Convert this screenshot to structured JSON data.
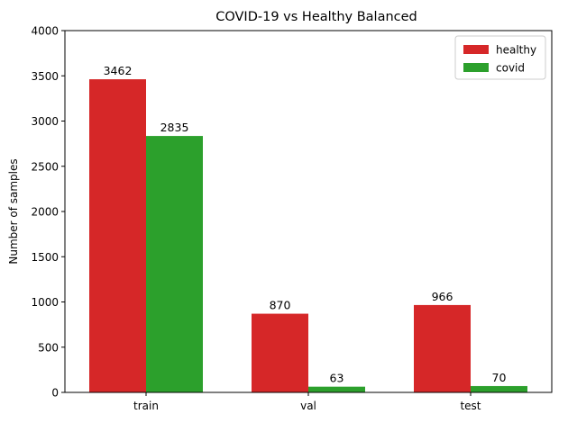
{
  "chart_data": {
    "type": "bar",
    "title": "COVID-19 vs Healthy Balanced",
    "xlabel": "",
    "ylabel": "Number of samples",
    "categories": [
      "train",
      "val",
      "test"
    ],
    "series": [
      {
        "name": "healthy",
        "values": [
          3462,
          870,
          966
        ],
        "color": "#d62728"
      },
      {
        "name": "covid",
        "values": [
          2835,
          63,
          70
        ],
        "color": "#2ca02c"
      }
    ],
    "ylim": [
      0,
      4000
    ],
    "yticks": [
      0,
      500,
      1000,
      1500,
      2000,
      2500,
      3000,
      3500,
      4000
    ],
    "data_labels": true,
    "grid": false,
    "legend_position": "top-right"
  }
}
